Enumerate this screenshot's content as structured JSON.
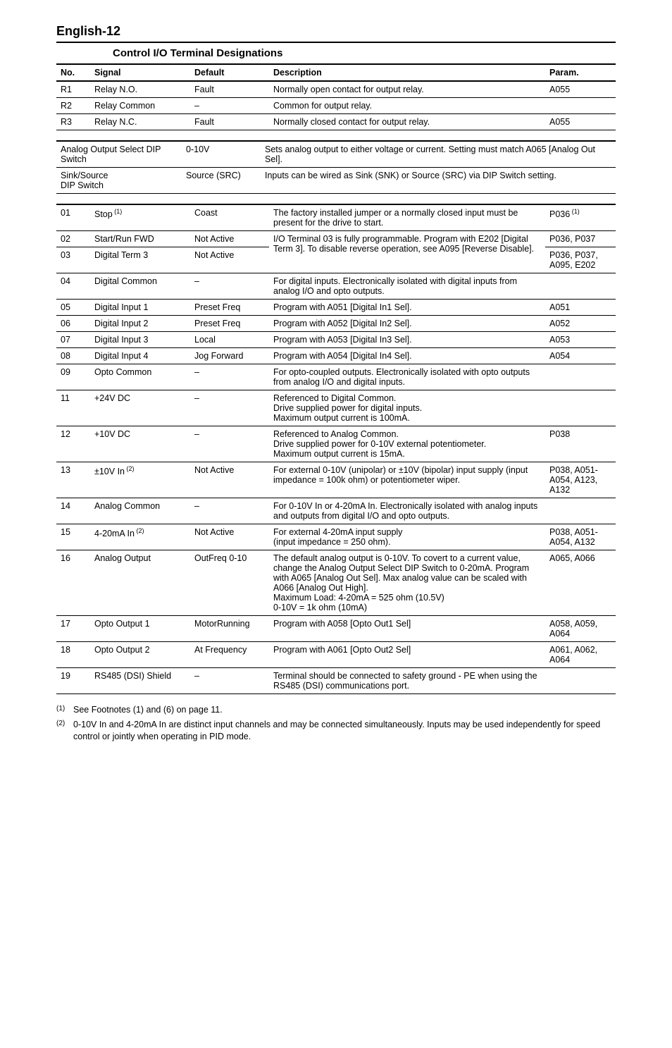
{
  "page_header": "English-12",
  "section_title": "Control I/O Terminal Designations",
  "table1": {
    "headers": {
      "no": "No.",
      "signal": "Signal",
      "default": "Default",
      "description": "Description",
      "param": "Param."
    },
    "rows": [
      {
        "no": "R1",
        "signal": "Relay N.O.",
        "default": "Fault",
        "description": "Normally open contact for output relay.",
        "param": "A055"
      },
      {
        "no": "R2",
        "signal": "Relay Common",
        "default": "–",
        "description": "Common for output relay.",
        "param": ""
      },
      {
        "no": "R3",
        "signal": "Relay N.C.",
        "default": "Fault",
        "description": "Normally closed contact for output relay.",
        "param": "A055"
      }
    ]
  },
  "table2": {
    "rows": [
      {
        "c1": "Analog Output Select DIP Switch",
        "c2": "0-10V",
        "c3": "Sets analog output to either voltage or current. Setting must match A065 [Analog Out Sel]."
      },
      {
        "c1": "Sink/Source\nDIP Switch",
        "c2": "Source (SRC)",
        "c3": "Inputs can be wired as Sink (SNK) or Source (SRC) via DIP Switch setting."
      }
    ]
  },
  "table3": {
    "rows": [
      {
        "no": "01",
        "signal": "Stop",
        "sig_sup": "(1)",
        "default": "Coast",
        "description": "The factory installed jumper or a normally closed input must be present for the drive to start.",
        "param": "P036",
        "param_sup": "(1)"
      },
      {
        "no": "02",
        "signal": "Start/Run FWD",
        "default": "Not Active",
        "description": "I/O Terminal 03 is fully programmable. Program with E202 [Digital Term 3]. To disable reverse operation, see A095 [Reverse Disable].",
        "param": "P036, P037",
        "rowspan_desc": 2
      },
      {
        "no": "03",
        "signal": "Digital Term 3",
        "default": "Not Active",
        "description": "",
        "param": "P036, P037, A095, E202"
      },
      {
        "no": "04",
        "signal": "Digital Common",
        "default": "–",
        "description": "For digital inputs. Electronically isolated with digital inputs from analog I/O and opto outputs.",
        "param": ""
      },
      {
        "no": "05",
        "signal": "Digital Input 1",
        "default": "Preset Freq",
        "description": "Program with A051 [Digital In1 Sel].",
        "param": "A051"
      },
      {
        "no": "06",
        "signal": "Digital Input 2",
        "default": "Preset Freq",
        "description": "Program with A052 [Digital In2 Sel].",
        "param": "A052"
      },
      {
        "no": "07",
        "signal": "Digital Input 3",
        "default": "Local",
        "description": "Program with A053 [Digital In3 Sel].",
        "param": "A053"
      },
      {
        "no": "08",
        "signal": "Digital Input 4",
        "default": "Jog Forward",
        "description": "Program with A054 [Digital In4 Sel].",
        "param": "A054"
      },
      {
        "no": "09",
        "signal": "Opto Common",
        "default": "–",
        "description": "For opto-coupled outputs. Electronically isolated with opto outputs from analog I/O and digital inputs.",
        "param": ""
      },
      {
        "no": "11",
        "signal": "+24V DC",
        "default": "–",
        "description": "Referenced to Digital Common.\nDrive supplied power for digital inputs.\nMaximum output current is 100mA.",
        "param": ""
      },
      {
        "no": "12",
        "signal": "+10V DC",
        "default": "–",
        "description": "Referenced to Analog Common.\nDrive supplied power for 0-10V external potentiometer.\nMaximum output current is 15mA.",
        "param": "P038"
      },
      {
        "no": "13",
        "signal": "±10V In",
        "sig_sup": "(2)",
        "default": "Not Active",
        "description": "For external 0-10V (unipolar) or ±10V (bipolar) input supply (input impedance = 100k ohm) or potentiometer wiper.",
        "param": "P038, A051-A054, A123, A132"
      },
      {
        "no": "14",
        "signal": "Analog Common",
        "default": "–",
        "description": "For 0-10V In or 4-20mA In. Electronically isolated with analog inputs and outputs from digital I/O and opto outputs.",
        "param": ""
      },
      {
        "no": "15",
        "signal": "4-20mA In",
        "sig_sup": "(2)",
        "default": "Not Active",
        "description": "For external 4-20mA input supply\n(input impedance = 250 ohm).",
        "param": "P038, A051-A054, A132"
      },
      {
        "no": "16",
        "signal": "Analog Output",
        "default": "OutFreq 0-10",
        "description": "The default analog output is 0-10V. To covert to a current value, change the Analog Output Select DIP Switch to 0-20mA. Program with A065 [Analog Out Sel]. Max analog value can be scaled with A066 [Analog Out High].\nMaximum Load:   4-20mA = 525 ohm (10.5V)\n                            0-10V = 1k ohm (10mA)",
        "param": "A065, A066"
      },
      {
        "no": "17",
        "signal": "Opto Output 1",
        "default": "MotorRunning",
        "description": "Program with A058 [Opto Out1 Sel]",
        "param": "A058, A059, A064"
      },
      {
        "no": "18",
        "signal": "Opto Output 2",
        "default": "At Frequency",
        "description": "Program with A061 [Opto Out2 Sel]",
        "param": "A061, A062, A064"
      },
      {
        "no": "19",
        "signal": "RS485 (DSI) Shield",
        "default": "–",
        "description": "Terminal should be connected to safety ground - PE when using the RS485 (DSI) communications port.",
        "param": ""
      }
    ]
  },
  "footnotes": [
    {
      "num": "(1)",
      "text": "See Footnotes (1) and (6) on page 11."
    },
    {
      "num": "(2)",
      "text": "0-10V In and 4-20mA In are distinct input channels and may be connected simultaneously. Inputs may be used independently for speed control or jointly when operating in PID mode."
    }
  ]
}
